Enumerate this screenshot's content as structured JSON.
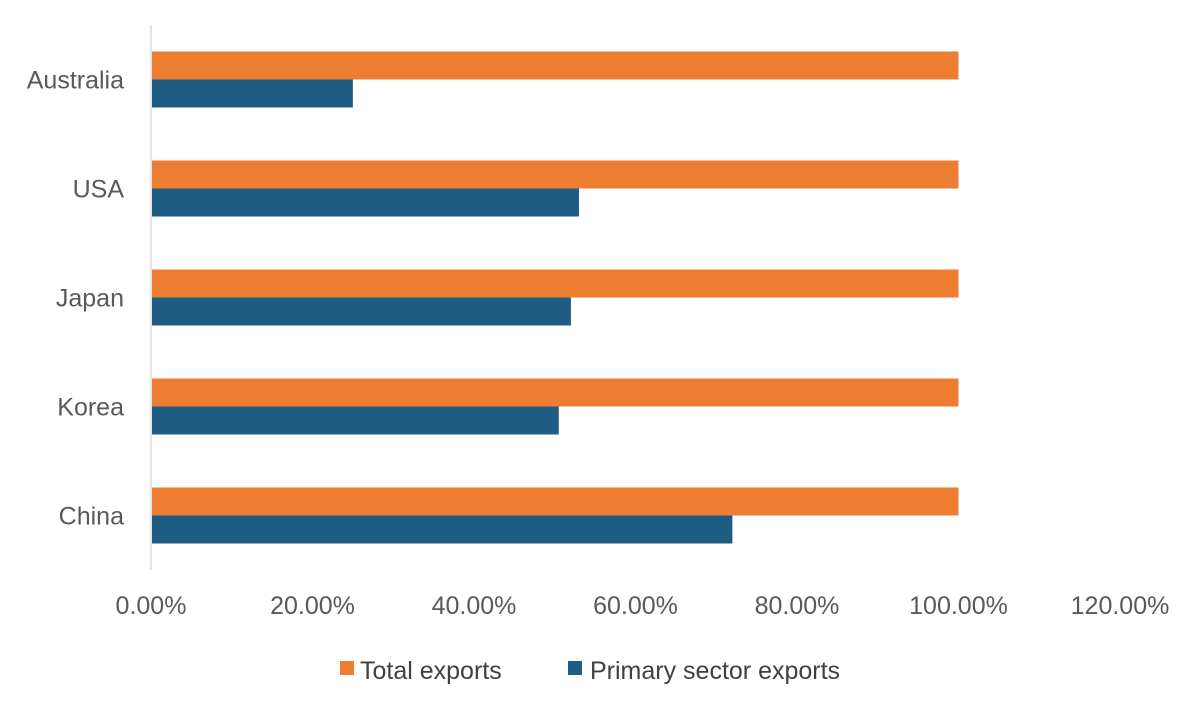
{
  "chart_data": {
    "type": "bar",
    "orientation": "horizontal",
    "categories": [
      "Australia",
      "USA",
      "Japan",
      "Korea",
      "China"
    ],
    "series": [
      {
        "name": "Total exports",
        "color": "#ED7D31",
        "values": [
          100,
          100,
          100,
          100,
          100
        ]
      },
      {
        "name": "Primary sector exports",
        "color": "#1F5C84",
        "values": [
          25,
          53,
          52,
          50.5,
          72
        ]
      }
    ],
    "xlim": [
      0,
      120
    ],
    "x_ticks": [
      "0.00%",
      "20.00%",
      "40.00%",
      "60.00%",
      "80.00%",
      "100.00%",
      "120.00%"
    ],
    "grid": false,
    "legend_position": "bottom"
  }
}
